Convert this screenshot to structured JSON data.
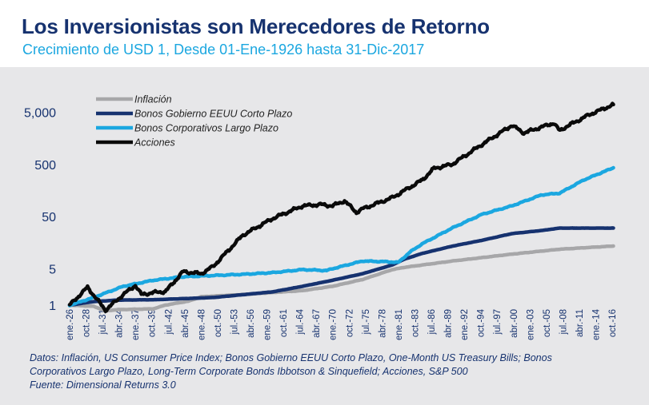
{
  "header": {
    "title": "Los Inversionistas son Merecedores de Retorno",
    "subtitle": "Crecimiento de USD 1, Desde 01-Ene-1926 hasta 31-Dic-2017"
  },
  "notes": {
    "line1": "Datos: Inflación, US Consumer Price Index; Bonos Gobierno EEUU Corto Plazo, One-Month US Treasury Bills; Bonos",
    "line2": "Corporativos Largo Plazo, Long-Term Corporate Bonds Ibbotson & Sinquefield; Acciones, S&P 500",
    "line3": "Fuente: Dimensional Returns 3.0"
  },
  "chart_data": {
    "type": "line",
    "title": "Los Inversionistas son Merecedores de Retorno",
    "subtitle": "Crecimiento de USD 1, Desde 01-Ene-1926 hasta 31-Dic-2017",
    "y_scale": "log",
    "ylim": [
      1,
      7000
    ],
    "y_ticks": [
      1,
      5,
      50,
      500,
      5000
    ],
    "y_tick_labels": [
      "1",
      "5",
      "50",
      "500",
      "5,000"
    ],
    "xlim": [
      1926.0,
      2018.0
    ],
    "x_tick_labels": [
      "ene.-26",
      "oct.-28",
      "jul.-31",
      "abr.-34",
      "ene.-37",
      "oct.-39",
      "jul.-42",
      "abr.-45",
      "ene.-48",
      "oct.-50",
      "jul.-53",
      "abr.-56",
      "ene.-59",
      "oct.-61",
      "jul.-64",
      "abr.-67",
      "ene.-70",
      "oct.-72",
      "jul.-75",
      "abr.-78",
      "ene.-81",
      "oct.-83",
      "jul.-86",
      "abr.-89",
      "ene.-92",
      "oct.-94",
      "jul.-97",
      "abr.-00",
      "ene.-03",
      "oct.-05",
      "jul.-08",
      "abr.-11",
      "ene.-14",
      "oct.-16"
    ],
    "legend_position": "top-left",
    "grid": false,
    "colors": {
      "Inflación": "#a7a7a9",
      "Bonos Gobierno EEUU Corto Plazo": "#16326f",
      "Bonos Corporativos Largo Plazo": "#1ba7e0",
      "Acciones": "#0a0a0a"
    },
    "series": [
      {
        "name": "Inflación",
        "x": [
          1926,
          1930,
          1932,
          1934,
          1940,
          1942,
          1946,
          1948,
          1955,
          1965,
          1970,
          1975,
          1980,
          1982,
          1990,
          2000,
          2008,
          2017
        ],
        "values": [
          1.0,
          0.95,
          0.78,
          0.82,
          0.85,
          1.0,
          1.2,
          1.45,
          1.6,
          1.9,
          2.3,
          3.1,
          4.8,
          5.3,
          7.0,
          9.5,
          11.8,
          13.6
        ]
      },
      {
        "name": "Bonos Gobierno EEUU Corto Plazo",
        "x": [
          1926,
          1930,
          1934,
          1940,
          1950,
          1960,
          1965,
          1970,
          1975,
          1980,
          1982,
          1985,
          1990,
          1995,
          2000,
          2005,
          2008,
          2017
        ],
        "values": [
          1.0,
          1.17,
          1.25,
          1.27,
          1.4,
          1.8,
          2.3,
          3.0,
          4.0,
          5.9,
          7.6,
          9.8,
          13.5,
          17.5,
          23.5,
          27.0,
          30.0,
          30.0
        ]
      },
      {
        "name": "Bonos Corporativos Largo Plazo",
        "x": [
          1926,
          1930,
          1935,
          1940,
          1945,
          1950,
          1955,
          1960,
          1965,
          1969,
          1970,
          1975,
          1979,
          1981,
          1983,
          1985,
          1990,
          1995,
          2000,
          2005,
          2008,
          2012,
          2017
        ],
        "values": [
          1.0,
          1.4,
          2.3,
          3.0,
          3.5,
          3.7,
          3.9,
          4.2,
          4.8,
          4.6,
          5.0,
          7.0,
          6.8,
          6.6,
          10.5,
          15.0,
          30.0,
          55.0,
          80.0,
          130.0,
          140.0,
          250.0,
          430.0
        ]
      },
      {
        "name": "Acciones",
        "x": [
          1926,
          1929,
          1932,
          1935,
          1937,
          1938,
          1941,
          1942,
          1945,
          1948,
          1950,
          1955,
          1960,
          1965,
          1968,
          1970,
          1972,
          1974,
          1975,
          1980,
          1985,
          1987,
          1990,
          1995,
          2000,
          2002,
          2007,
          2008,
          2009,
          2013,
          2017
        ],
        "values": [
          1.0,
          2.2,
          0.8,
          1.6,
          2.4,
          1.6,
          1.8,
          1.8,
          4.4,
          4.0,
          5.5,
          22.0,
          46.0,
          80.0,
          85.0,
          80.0,
          100.0,
          60.0,
          70.0,
          115.0,
          250.0,
          420.0,
          500.0,
          1200.0,
          2800.0,
          2000.0,
          3100.0,
          2200.0,
          2600.0,
          4500.0,
          7000.0
        ]
      }
    ]
  }
}
